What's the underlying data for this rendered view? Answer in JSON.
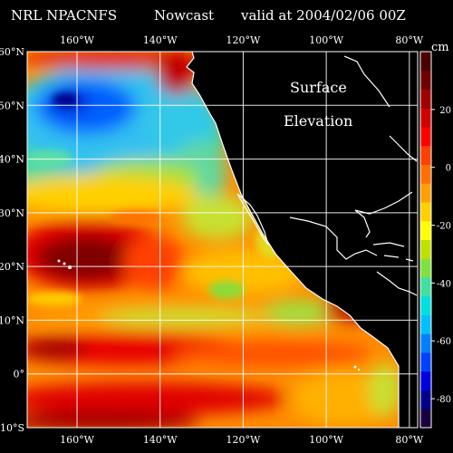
{
  "header": {
    "model": "NRL NPACNFS",
    "product": "Nowcast",
    "valid": "valid at 2004/02/06 00Z"
  },
  "map": {
    "title_line1": "Surface",
    "title_line2": "Elevation",
    "lon_labels": [
      "160°W",
      "140°W",
      "120°W",
      "100°W",
      "80°W"
    ],
    "lon_values": [
      -160,
      -140,
      -120,
      -100,
      -80
    ],
    "lat_labels": [
      "60°N",
      "50°N",
      "40°N",
      "30°N",
      "20°N",
      "10°N",
      "0°",
      "10°S"
    ],
    "lat_values": [
      60,
      50,
      40,
      30,
      20,
      10,
      0,
      -10
    ],
    "lon_range": [
      -172,
      -78
    ],
    "lat_range": [
      -10,
      60
    ],
    "land_color": "#000000",
    "coast_color": "#ffffff",
    "grid_color": "#ffffff"
  },
  "colorbar": {
    "unit": "cm",
    "tick_labels": [
      "20",
      "0",
      "-20",
      "-40",
      "-60",
      "-80"
    ],
    "tick_values": [
      20,
      0,
      -20,
      -40,
      -60,
      -80
    ],
    "range": [
      -90,
      40
    ],
    "colors": [
      "#1a0040",
      "#00008b",
      "#0000e0",
      "#0040ff",
      "#0080ff",
      "#00c0ff",
      "#00e0e0",
      "#40e0a0",
      "#80e040",
      "#c0e000",
      "#ffff00",
      "#ffd000",
      "#ffa000",
      "#ff7000",
      "#ff4000",
      "#ff0000",
      "#d00000",
      "#a00000",
      "#700000",
      "#4a0000"
    ]
  }
}
